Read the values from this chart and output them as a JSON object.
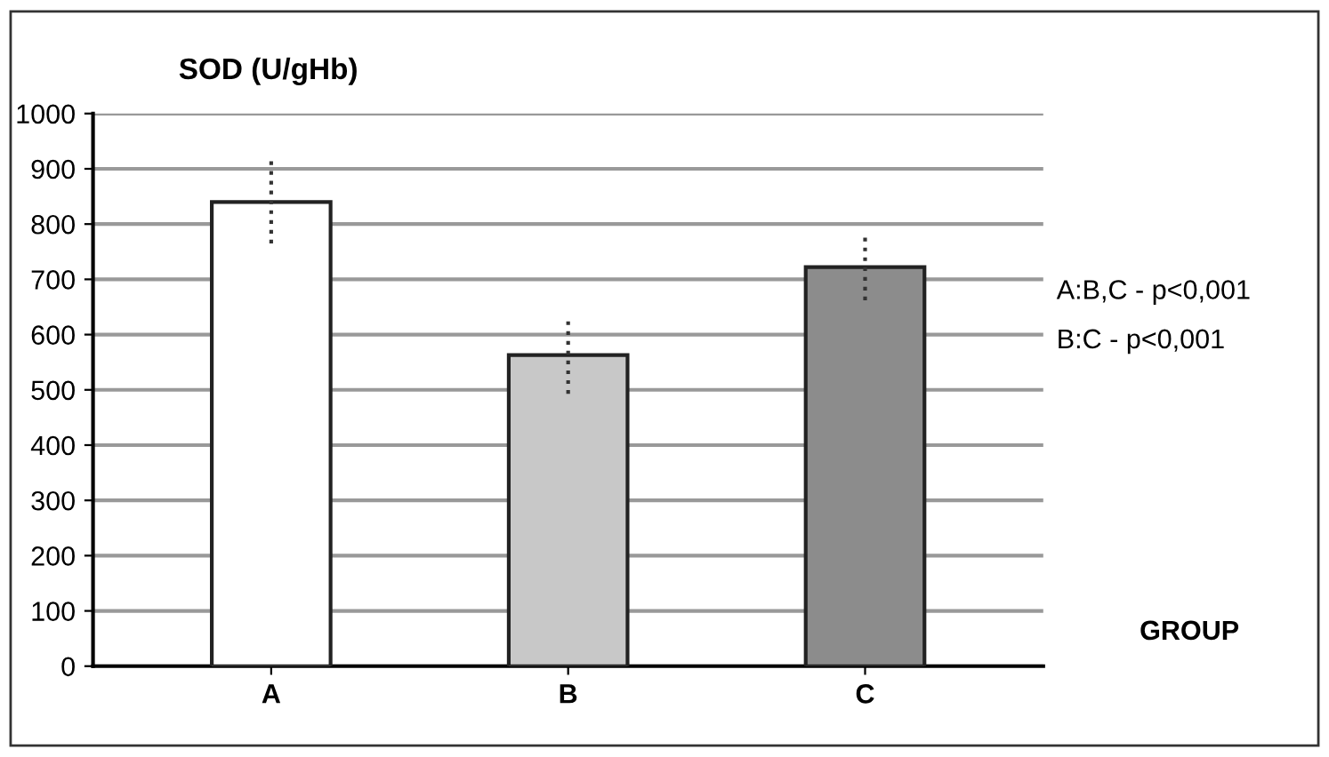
{
  "chart_data": {
    "type": "bar",
    "title": "SOD (U/gHb)",
    "xlabel": "GROUP",
    "categories": [
      "A",
      "B",
      "C"
    ],
    "values": [
      840,
      563,
      722
    ],
    "errors": [
      75,
      70,
      60
    ],
    "colors": [
      "#ffffff",
      "#c8c8c8",
      "#8c8c8c"
    ],
    "ylim": [
      0,
      1000
    ],
    "yticks": [
      0,
      100,
      200,
      300,
      400,
      500,
      600,
      700,
      800,
      900,
      1000
    ],
    "grid": "y",
    "annotations": [
      "A:B,C - p<0,001",
      "B:C - p<0,001"
    ]
  }
}
